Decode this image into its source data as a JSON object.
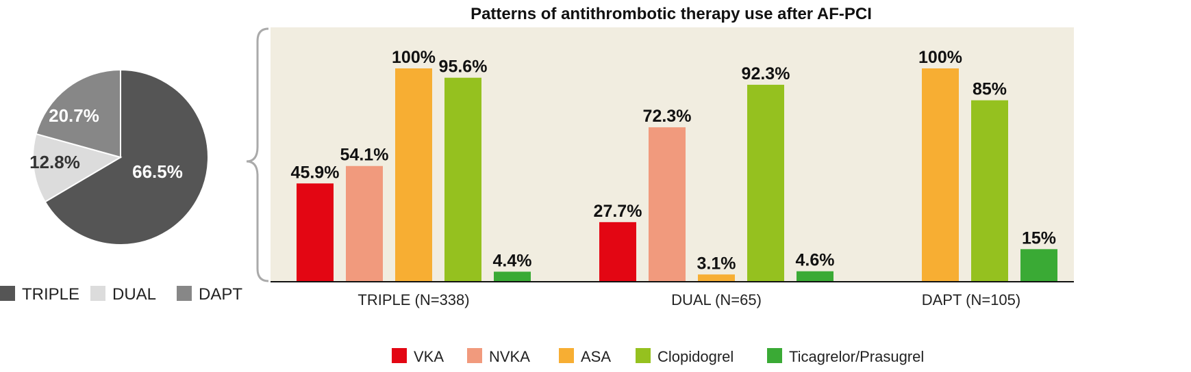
{
  "chart_data": [
    {
      "type": "pie",
      "title": "",
      "slices": [
        {
          "label": "TRIPLE",
          "value": 66.5,
          "display": "66.5%",
          "color": "#555555"
        },
        {
          "label": "DUAL",
          "value": 12.8,
          "display": "12.8%",
          "color": "#dcdcdc"
        },
        {
          "label": "DAPT",
          "value": 20.7,
          "display": "20.7%",
          "color": "#878787"
        }
      ],
      "legend_placement": "bottom"
    },
    {
      "type": "bar",
      "title": "Patterns of antithrombotic therapy use after AF-PCI",
      "xlabel": "",
      "ylabel": "",
      "ylim": [
        0,
        100
      ],
      "background": "#f1ede0",
      "categories": [
        "TRIPLE (N=338)",
        "DUAL (N=65)",
        "DAPT (N=105)"
      ],
      "series": [
        {
          "name": "VKA",
          "color": "#e30613",
          "values": [
            45.9,
            27.7,
            null
          ],
          "labels": [
            "45.9%",
            "27.7%",
            ""
          ]
        },
        {
          "name": "NVKA",
          "color": "#f19a7d",
          "values": [
            54.1,
            72.3,
            null
          ],
          "labels": [
            "54.1%",
            "72.3%",
            ""
          ]
        },
        {
          "name": "ASA",
          "color": "#f7ae33",
          "values": [
            100,
            3.1,
            100
          ],
          "labels": [
            "100%",
            "3.1%",
            "100%"
          ]
        },
        {
          "name": "Clopidogrel",
          "color": "#95c11f",
          "values": [
            95.6,
            92.3,
            85
          ],
          "labels": [
            "95.6%",
            "92.3%",
            "85%"
          ]
        },
        {
          "name": "Ticagrelor/Prasugrel",
          "color": "#3aaa35",
          "values": [
            4.4,
            4.6,
            15
          ],
          "labels": [
            "4.4%",
            "4.6%",
            "15%"
          ]
        }
      ],
      "legend_placement": "bottom"
    }
  ]
}
